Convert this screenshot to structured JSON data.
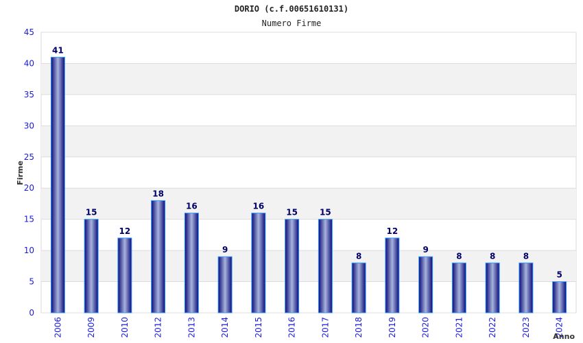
{
  "chart_data": {
    "type": "bar",
    "title": "DORIO (c.f.00651610131)",
    "subtitle": "Numero Firme",
    "xlabel": "Anno",
    "ylabel": "Firme",
    "ylim": [
      0,
      45
    ],
    "yticks": [
      0,
      5,
      10,
      15,
      20,
      25,
      30,
      35,
      40,
      45
    ],
    "categories": [
      "2006",
      "2009",
      "2010",
      "2012",
      "2013",
      "2014",
      "2015",
      "2016",
      "2017",
      "2018",
      "2019",
      "2020",
      "2021",
      "2022",
      "2023",
      "2024"
    ],
    "values": [
      41,
      15,
      12,
      18,
      16,
      9,
      16,
      15,
      15,
      8,
      12,
      9,
      8,
      8,
      8,
      5
    ],
    "grid": true,
    "colors": {
      "bar_dark": "#0a0a78",
      "bar_light": "#a8b4dc",
      "bar_border": "#3399ff",
      "tick": "#1a1adc",
      "label": "#000066",
      "band": "#f2f2f2"
    }
  }
}
